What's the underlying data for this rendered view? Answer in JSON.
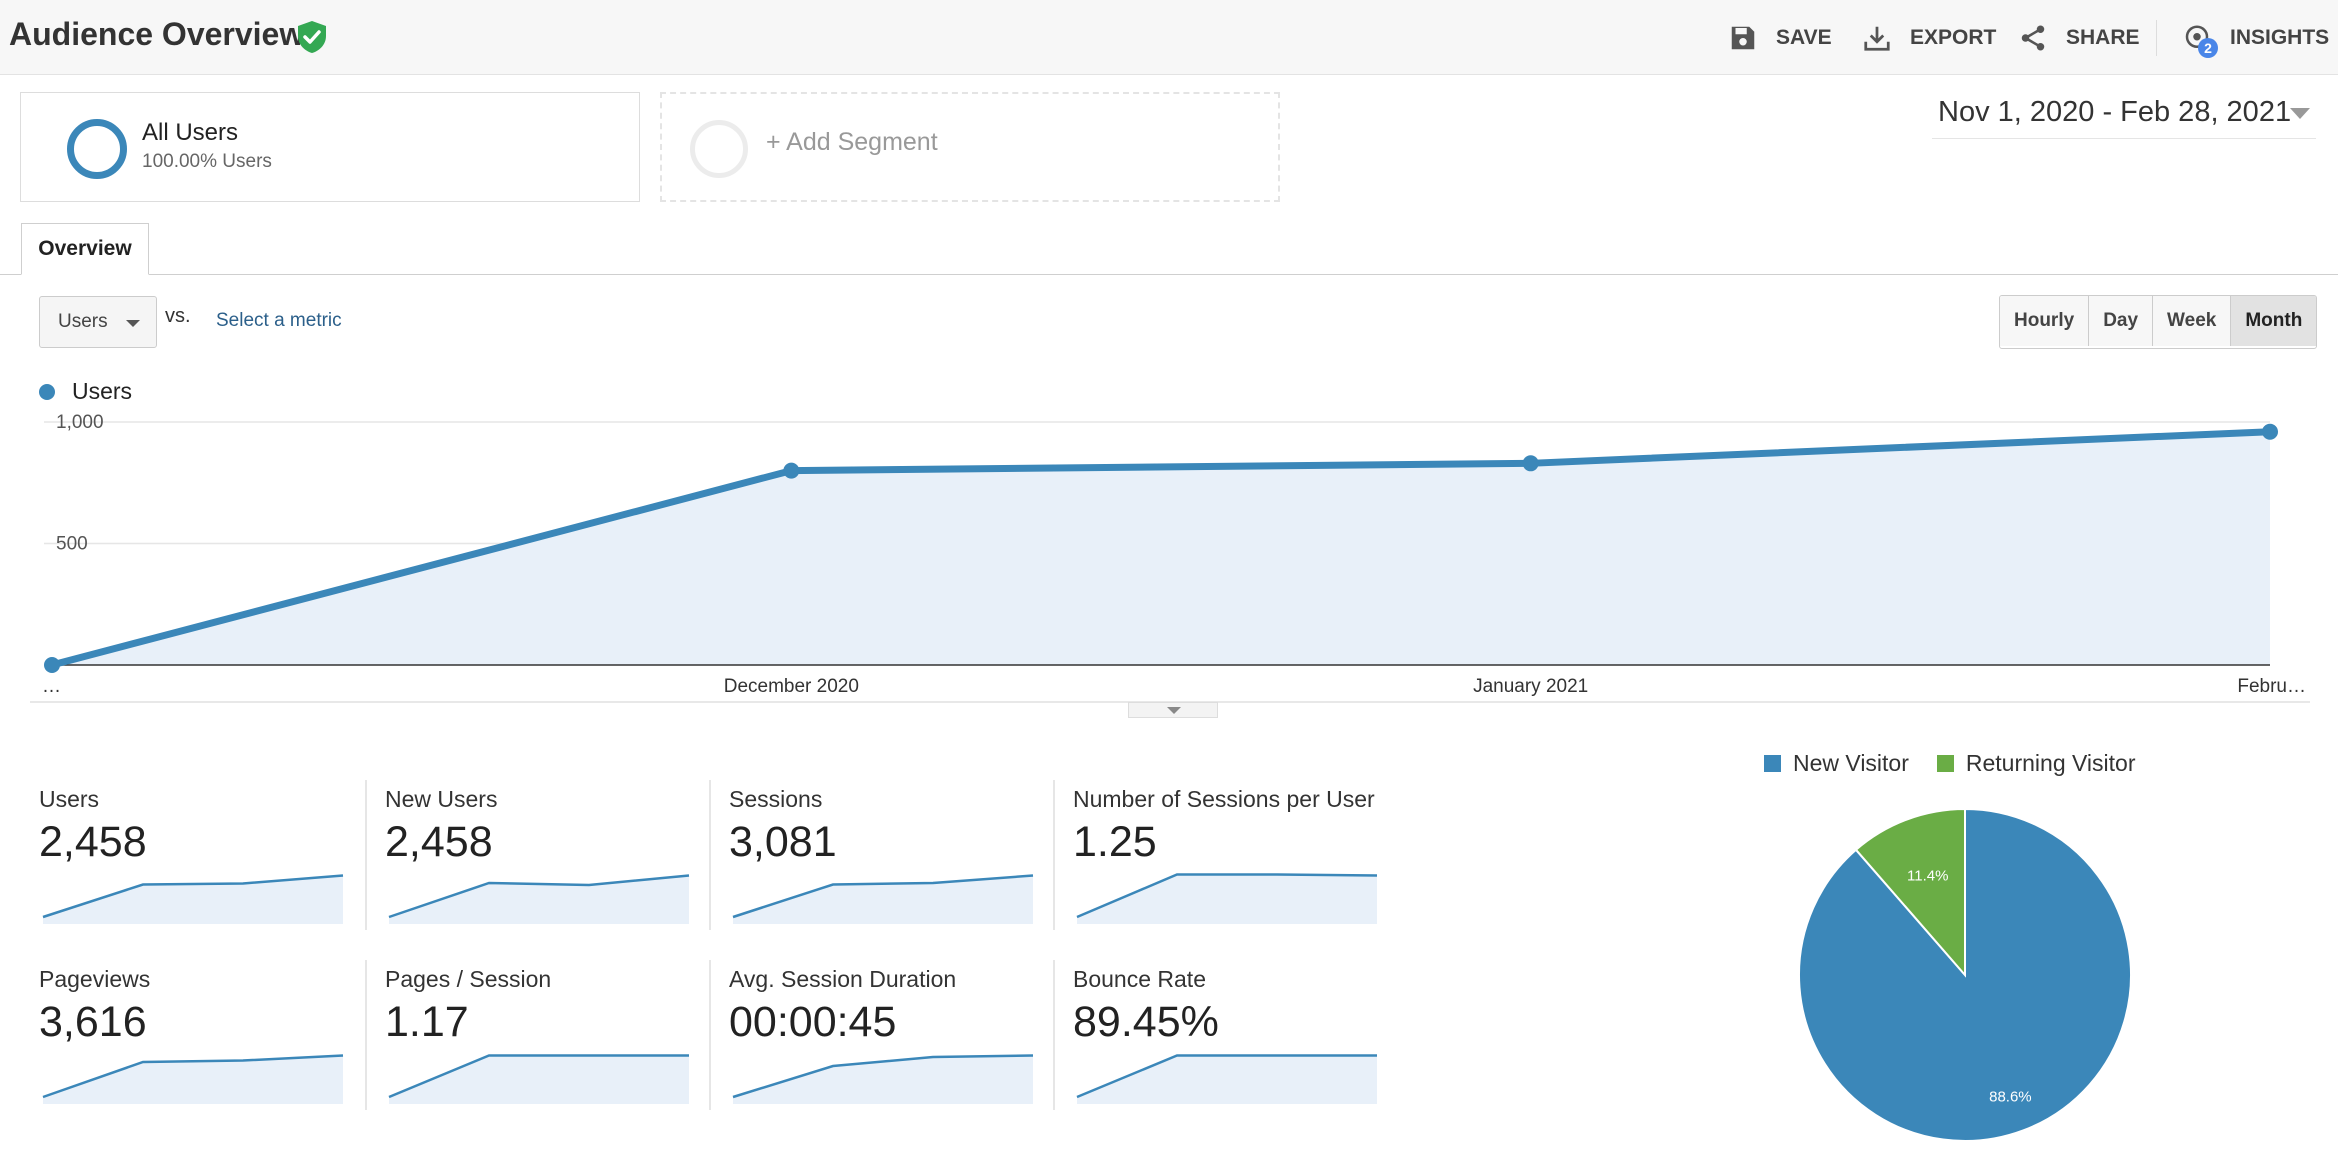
{
  "header": {
    "title": "Audience Overview",
    "actions": [
      {
        "label": "SAVE",
        "icon": "save-icon"
      },
      {
        "label": "EXPORT",
        "icon": "export-icon"
      },
      {
        "label": "SHARE",
        "icon": "share-icon"
      },
      {
        "label": "INSIGHTS",
        "icon": "insights-icon",
        "badge": "2"
      }
    ]
  },
  "segments": {
    "active": {
      "name": "All Users",
      "sub": "100.00% Users"
    },
    "add_label": "+ Add Segment"
  },
  "date_range": "Nov 1, 2020 - Feb 28, 2021",
  "tabs": [
    {
      "label": "Overview"
    }
  ],
  "controls": {
    "metric": "Users",
    "vs": "vs.",
    "select_metric": "Select a metric",
    "granularity": [
      "Hourly",
      "Day",
      "Week",
      "Month"
    ],
    "granularity_active": "Month"
  },
  "colors": {
    "primary": "#3b87b9",
    "fill": "#e8f0f9",
    "returning": "#6aad45"
  },
  "chart_data": [
    {
      "type": "line",
      "series": [
        {
          "name": "Users",
          "values": [
            0,
            800,
            830,
            960
          ]
        }
      ],
      "x": [
        "…",
        "December 2020",
        "January 2021",
        "Febru…"
      ],
      "yticks": [
        "1,000",
        "500"
      ],
      "ylim": [
        0,
        1000
      ],
      "grid": true,
      "legend": "top-left"
    },
    {
      "type": "pie",
      "labels": [
        "New Visitor",
        "Returning Visitor"
      ],
      "values": [
        88.6,
        11.4
      ],
      "value_labels": [
        "88.6%",
        "11.4%"
      ],
      "colors": [
        "#3b87b9",
        "#6aad45"
      ],
      "legend": "top"
    }
  ],
  "scorecards": [
    {
      "label": "Users",
      "value": "2,458",
      "trend": [
        0.1,
        0.75,
        0.77,
        0.93
      ]
    },
    {
      "label": "New Users",
      "value": "2,458",
      "trend": [
        0.1,
        0.78,
        0.74,
        0.93
      ]
    },
    {
      "label": "Sessions",
      "value": "3,081",
      "trend": [
        0.1,
        0.75,
        0.78,
        0.93
      ]
    },
    {
      "label": "Number of Sessions per User",
      "value": "1.25",
      "trend": [
        0.1,
        0.95,
        0.95,
        0.93
      ]
    },
    {
      "label": "Pageviews",
      "value": "3,616",
      "trend": [
        0.1,
        0.8,
        0.83,
        0.93
      ]
    },
    {
      "label": "Pages / Session",
      "value": "1.17",
      "trend": [
        0.1,
        0.93,
        0.93,
        0.93
      ]
    },
    {
      "label": "Avg. Session Duration",
      "value": "00:00:45",
      "trend": [
        0.1,
        0.72,
        0.9,
        0.93
      ]
    },
    {
      "label": "Bounce Rate",
      "value": "89.45%",
      "trend": [
        0.1,
        0.93,
        0.93,
        0.93
      ]
    }
  ]
}
